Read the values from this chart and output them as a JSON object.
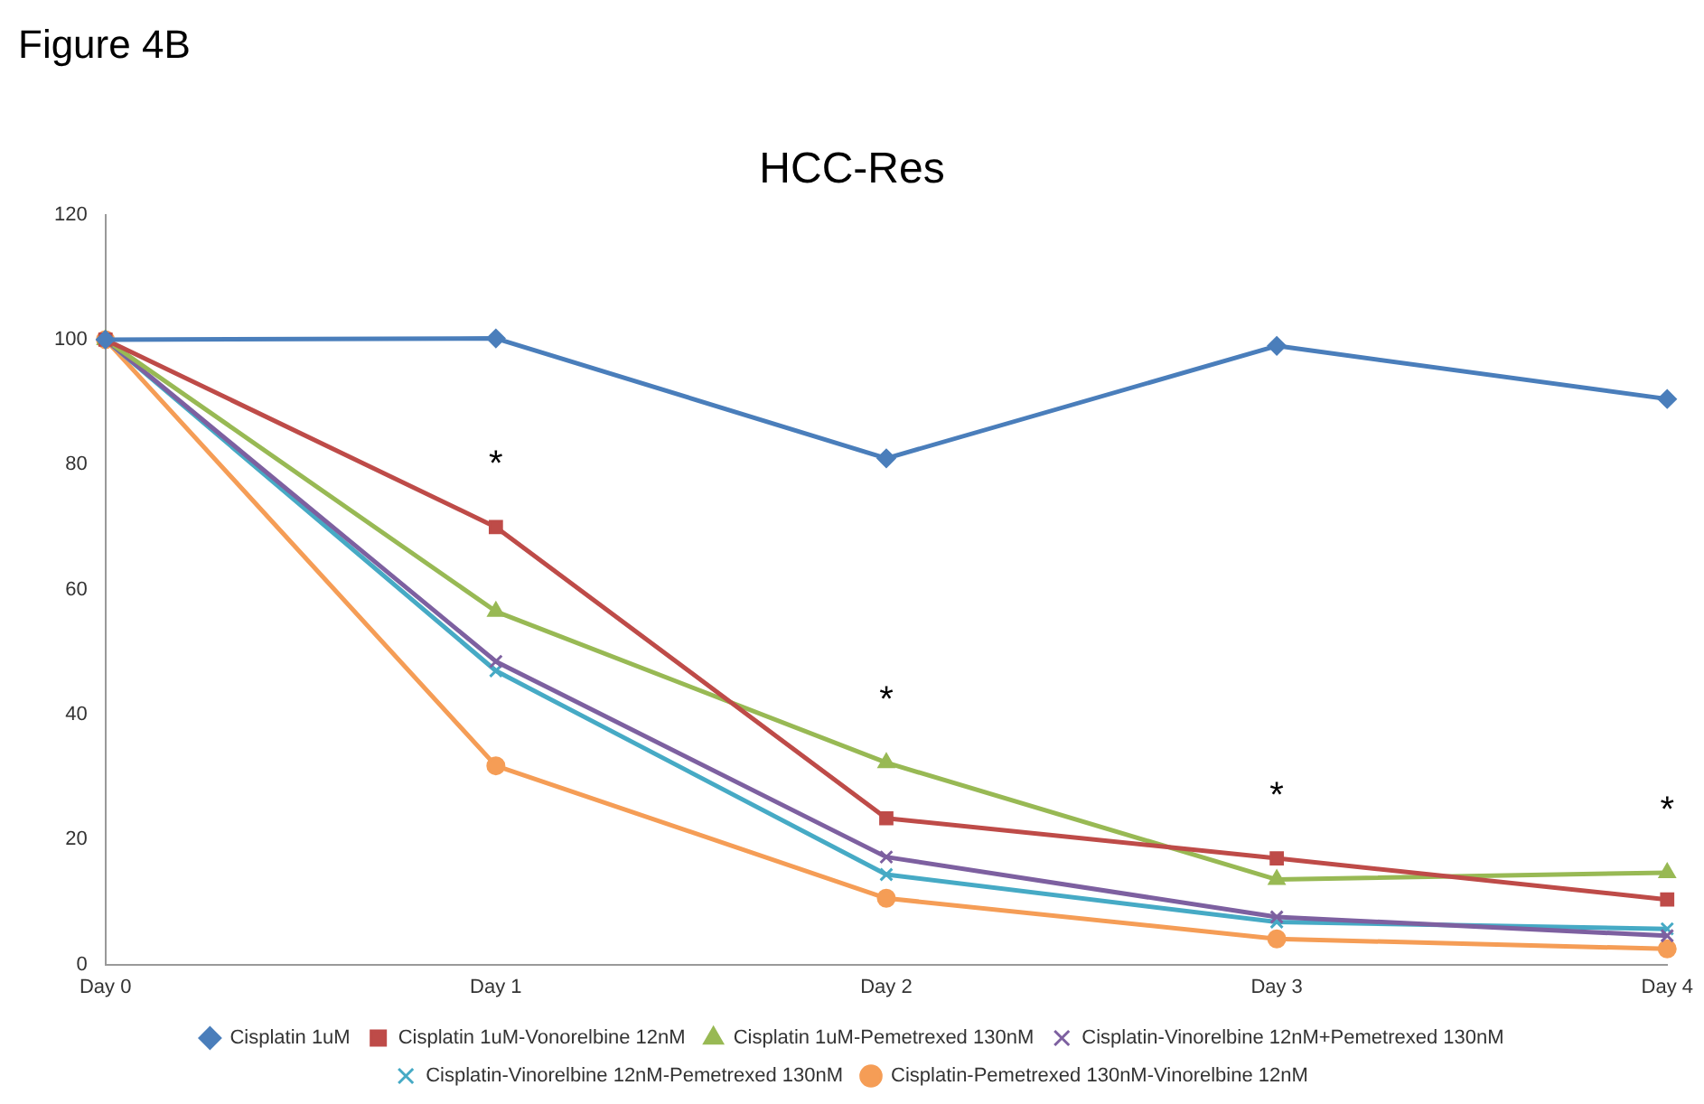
{
  "chart_data": {
    "type": "line",
    "title": "HCC-Res",
    "annotations": [
      "Figure 4B",
      "*",
      "*",
      "*",
      "*"
    ],
    "categories": [
      "Day 0",
      "Day 1",
      "Day 2",
      "Day 3",
      "Day 4"
    ],
    "series": [
      {
        "name": "Cisplatin 1uM",
        "color": "#4a7ebb",
        "marker": "diamond",
        "values": [
          100,
          100.2,
          81,
          99,
          90.5
        ]
      },
      {
        "name": "Cisplatin 1uM-Vonorelbine 12nM",
        "color": "#be4b48",
        "marker": "square",
        "values": [
          100,
          70,
          23.4,
          17,
          10.4
        ]
      },
      {
        "name": "Cisplatin 1uM-Pemetrexed 130nM",
        "color": "#98b954",
        "marker": "triangle",
        "values": [
          100,
          56.5,
          32.3,
          13.6,
          14.7
        ]
      },
      {
        "name": "Cisplatin-Vinorelbine 12nM+Pemetrexed 130nM",
        "color": "#7d60a0",
        "marker": "cross",
        "values": [
          100,
          48.5,
          17.2,
          7.6,
          4.6
        ]
      },
      {
        "name": "Cisplatin-Vinorelbine 12nM-Pemetrexed 130nM",
        "color": "#46aac5",
        "marker": "cross",
        "values": [
          100,
          47,
          14.4,
          6.8,
          5.7
        ]
      },
      {
        "name": "Cisplatin-Pemetrexed 130nM-Vinorelbine 12nM",
        "color": "#f59d56",
        "marker": "circle",
        "values": [
          100,
          31.8,
          10.6,
          4.1,
          2.5
        ]
      }
    ],
    "ylim": [
      0,
      120
    ],
    "yticks": [
      0,
      20,
      40,
      60,
      80,
      100,
      120
    ],
    "grid": false,
    "legend": "bottom",
    "line_style": "solid"
  }
}
